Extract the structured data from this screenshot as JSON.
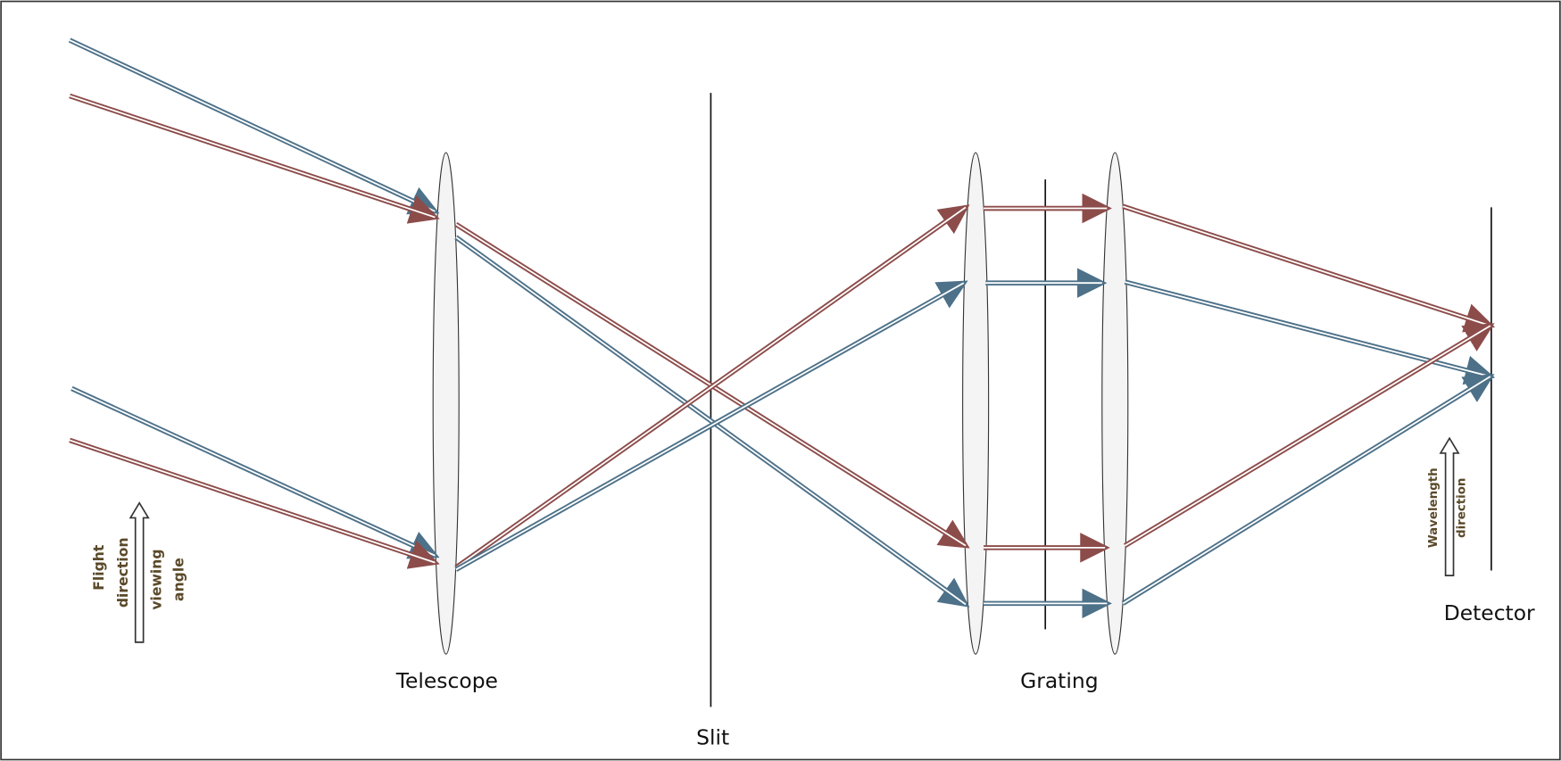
{
  "labels": {
    "telescope": "Telescope",
    "slit": "Slit",
    "grating": "Grating",
    "detector": "Detector"
  },
  "annotations": {
    "flight_direction": [
      "Flight",
      "direction"
    ],
    "viewing_angle": [
      "viewing",
      "angle"
    ],
    "wavelength_direction": [
      "Wavelength",
      "direction"
    ]
  }
}
